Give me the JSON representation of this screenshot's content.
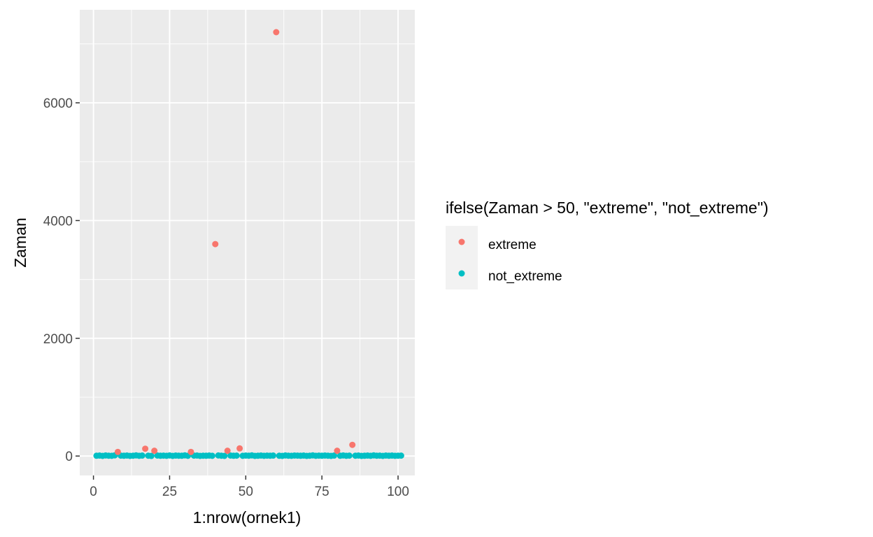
{
  "chart_data": {
    "type": "scatter",
    "xlabel": "1:nrow(ornek1)",
    "ylabel": "Zaman",
    "xlim": [
      -4.5,
      105.5
    ],
    "ylim": [
      -330,
      7580
    ],
    "x_ticks": [
      0,
      25,
      50,
      75,
      100
    ],
    "y_ticks": [
      0,
      2000,
      4000,
      6000
    ],
    "grid": true,
    "legend": {
      "title": "ifelse(Zaman > 50, \"extreme\", \"not_extreme\")",
      "placement": "right",
      "entries": [
        "extreme",
        "not_extreme"
      ]
    },
    "colors": {
      "extreme": "#F8766D",
      "not_extreme": "#00BFC4",
      "panel": "#EBEBEB",
      "grid": "#FFFFFF"
    },
    "series": [
      {
        "name": "extreme",
        "x": [
          8,
          17,
          20,
          32,
          40,
          44,
          48,
          60,
          80,
          85
        ],
        "y": [
          70,
          125,
          90,
          70,
          3600,
          90,
          130,
          7200,
          90,
          190
        ]
      },
      {
        "name": "not_extreme",
        "x": [
          1,
          2,
          3,
          4,
          5,
          6,
          7,
          9,
          10,
          11,
          12,
          13,
          14,
          15,
          16,
          18,
          19,
          21,
          22,
          23,
          24,
          25,
          26,
          27,
          28,
          29,
          30,
          31,
          33,
          34,
          35,
          36,
          37,
          38,
          39,
          41,
          42,
          43,
          45,
          46,
          47,
          49,
          50,
          51,
          52,
          53,
          54,
          55,
          56,
          57,
          58,
          59,
          61,
          62,
          63,
          64,
          65,
          66,
          67,
          68,
          69,
          70,
          71,
          72,
          73,
          74,
          75,
          76,
          77,
          78,
          79,
          81,
          82,
          83,
          84,
          86,
          87,
          88,
          89,
          90,
          91,
          92,
          93,
          94,
          95,
          96,
          97,
          98,
          99,
          100,
          101
        ],
        "y": [
          5,
          8,
          3,
          10,
          6,
          4,
          12,
          7,
          5,
          9,
          3,
          6,
          11,
          4,
          8,
          6,
          2,
          9,
          5,
          7,
          4,
          10,
          3,
          8,
          6,
          5,
          12,
          4,
          7,
          9,
          3,
          6,
          5,
          8,
          4,
          10,
          6,
          3,
          9,
          5,
          7,
          4,
          8,
          6,
          11,
          3,
          5,
          9,
          4,
          7,
          6,
          8,
          5,
          3,
          10,
          6,
          4,
          9,
          7,
          5,
          8,
          3,
          6,
          11,
          4,
          7,
          5,
          9,
          6,
          3,
          8,
          5,
          10,
          4,
          7,
          6,
          9,
          3,
          5,
          8,
          4,
          11,
          6,
          7,
          3,
          9,
          5,
          8,
          4,
          6,
          7
        ]
      }
    ]
  }
}
